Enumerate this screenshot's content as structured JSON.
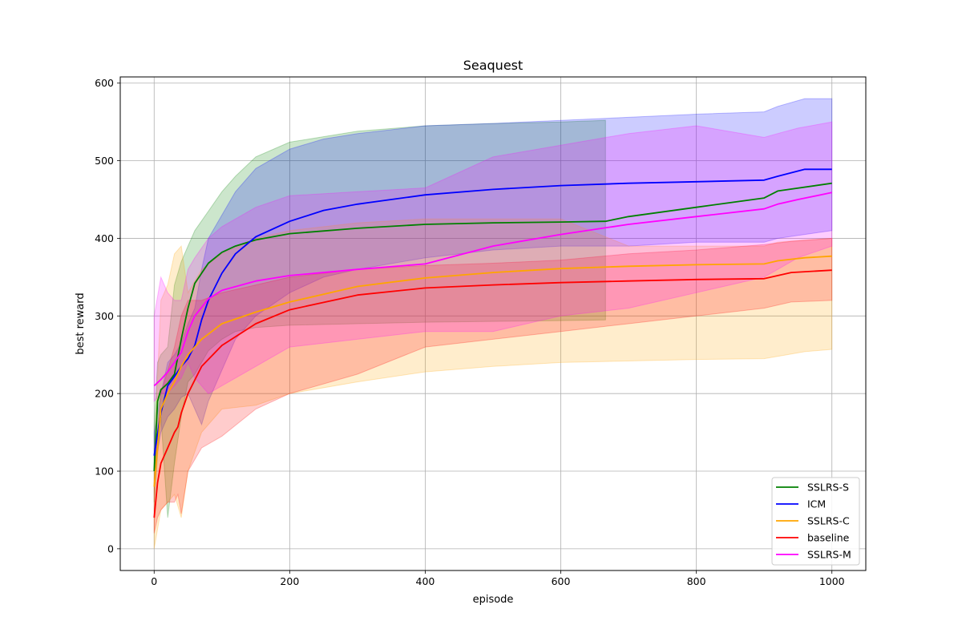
{
  "chart_data": {
    "type": "line",
    "title": "Seaquest",
    "xlabel": "episode",
    "ylabel": "best reward",
    "xlim": [
      -50,
      1050
    ],
    "ylim": [
      -28,
      608
    ],
    "xticks": [
      0,
      200,
      400,
      600,
      800,
      1000
    ],
    "yticks": [
      0,
      100,
      200,
      300,
      400,
      500,
      600
    ],
    "grid": true,
    "legend_position": "lower right",
    "series": [
      {
        "name": "SSLRS-S",
        "color": "#008000",
        "x": [
          0,
          5,
          10,
          20,
          30,
          40,
          50,
          60,
          80,
          100,
          120,
          150,
          200,
          300,
          400,
          500,
          600,
          666,
          700,
          800,
          900,
          920,
          1000
        ],
        "mean": [
          100,
          190,
          205,
          213,
          225,
          270,
          310,
          342,
          368,
          382,
          390,
          398,
          406,
          413,
          418,
          420,
          421,
          422,
          428,
          440,
          452,
          461,
          471
        ],
        "upper": [
          160,
          240,
          250,
          260,
          340,
          370,
          390,
          410,
          435,
          460,
          480,
          505,
          524,
          538,
          545,
          548,
          550,
          552,
          null,
          null,
          null,
          null,
          null
        ],
        "lower": [
          60,
          120,
          170,
          40,
          110,
          170,
          215,
          225,
          255,
          270,
          280,
          285,
          288,
          290,
          292,
          293,
          294,
          295,
          null,
          null,
          null,
          null,
          null
        ]
      },
      {
        "name": "ICM",
        "color": "#0000ff",
        "x": [
          0,
          10,
          20,
          30,
          40,
          50,
          60,
          70,
          80,
          100,
          120,
          150,
          200,
          250,
          300,
          400,
          500,
          600,
          700,
          800,
          900,
          920,
          960,
          1000
        ],
        "mean": [
          120,
          175,
          210,
          222,
          235,
          245,
          262,
          295,
          320,
          355,
          380,
          402,
          422,
          436,
          444,
          456,
          463,
          468,
          471,
          473,
          475,
          480,
          489,
          489
        ],
        "upper": [
          150,
          200,
          240,
          250,
          265,
          290,
          310,
          360,
          400,
          430,
          460,
          490,
          515,
          528,
          535,
          545,
          548,
          552,
          556,
          560,
          563,
          570,
          580,
          580
        ],
        "lower": [
          100,
          150,
          170,
          180,
          195,
          200,
          180,
          160,
          190,
          230,
          270,
          300,
          330,
          350,
          360,
          375,
          385,
          390,
          390,
          395,
          395,
          400,
          405,
          410
        ]
      },
      {
        "name": "SSLRS-C",
        "color": "#ffa500",
        "x": [
          0,
          10,
          20,
          30,
          40,
          50,
          70,
          100,
          150,
          200,
          300,
          400,
          500,
          600,
          700,
          800,
          900,
          920,
          960,
          1000
        ],
        "mean": [
          80,
          180,
          200,
          215,
          235,
          250,
          270,
          290,
          305,
          318,
          338,
          349,
          356,
          361,
          364,
          366,
          367,
          371,
          375,
          377
        ],
        "upper": [
          120,
          320,
          340,
          380,
          390,
          330,
          360,
          380,
          400,
          410,
          420,
          425,
          425,
          425,
          390,
          390,
          390,
          395,
          398,
          400
        ],
        "lower": [
          0,
          50,
          60,
          70,
          40,
          100,
          150,
          180,
          185,
          200,
          215,
          228,
          235,
          240,
          242,
          244,
          245,
          248,
          254,
          257
        ]
      },
      {
        "name": "baseline",
        "color": "#ff0000",
        "x": [
          0,
          5,
          10,
          20,
          30,
          35,
          40,
          50,
          70,
          100,
          150,
          200,
          300,
          400,
          500,
          600,
          700,
          800,
          900,
          940,
          1000
        ],
        "mean": [
          40,
          85,
          110,
          130,
          150,
          157,
          175,
          200,
          235,
          262,
          290,
          308,
          327,
          336,
          340,
          343,
          345,
          347,
          348,
          356,
          359
        ],
        "upper": [
          90,
          150,
          200,
          230,
          260,
          280,
          300,
          320,
          320,
          330,
          340,
          350,
          360,
          365,
          368,
          372,
          380,
          385,
          392,
          396,
          400
        ],
        "lower": [
          20,
          40,
          50,
          60,
          60,
          70,
          45,
          100,
          130,
          145,
          180,
          200,
          225,
          260,
          270,
          280,
          290,
          300,
          310,
          318,
          320
        ]
      },
      {
        "name": "SSLRS-M",
        "color": "#ff00ff",
        "x": [
          0,
          10,
          20,
          30,
          40,
          50,
          60,
          80,
          100,
          150,
          200,
          300,
          400,
          500,
          600,
          700,
          800,
          900,
          920,
          950,
          1000
        ],
        "mean": [
          210,
          218,
          228,
          240,
          253,
          280,
          300,
          322,
          333,
          345,
          352,
          360,
          367,
          390,
          405,
          418,
          428,
          438,
          444,
          450,
          459
        ],
        "upper": [
          300,
          350,
          330,
          320,
          320,
          360,
          375,
          400,
          415,
          440,
          455,
          460,
          465,
          505,
          520,
          535,
          545,
          530,
          535,
          542,
          550
        ],
        "lower": [
          190,
          200,
          200,
          210,
          220,
          240,
          220,
          200,
          210,
          235,
          260,
          270,
          280,
          280,
          300,
          310,
          330,
          350,
          360,
          375,
          390
        ]
      }
    ]
  }
}
